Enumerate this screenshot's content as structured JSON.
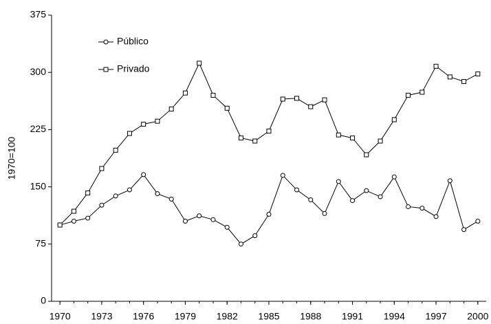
{
  "chart_data": {
    "type": "line",
    "y_label": "1970=100",
    "x": [
      1970,
      1971,
      1972,
      1973,
      1974,
      1975,
      1976,
      1977,
      1978,
      1979,
      1980,
      1981,
      1982,
      1983,
      1984,
      1985,
      1986,
      1987,
      1988,
      1989,
      1990,
      1991,
      1992,
      1993,
      1994,
      1995,
      1996,
      1997,
      1998,
      1999,
      2000
    ],
    "series": [
      {
        "name": "Público",
        "color": "#000000",
        "marker": "circle",
        "values": [
          100,
          105,
          109,
          126,
          138,
          146,
          166,
          141,
          134,
          105,
          112,
          107,
          97,
          75,
          86,
          114,
          165,
          146,
          133,
          115,
          157,
          132,
          145,
          137,
          163,
          124,
          122,
          111,
          158,
          94,
          105
        ]
      },
      {
        "name": "Privado",
        "color": "#000000",
        "marker": "square",
        "values": [
          100,
          118,
          142,
          174,
          198,
          220,
          232,
          236,
          252,
          273,
          312,
          270,
          253,
          214,
          210,
          223,
          265,
          266,
          255,
          264,
          218,
          214,
          192,
          210,
          238,
          270,
          274,
          308,
          294,
          288,
          298
        ]
      }
    ],
    "xlim": [
      1969.4,
      2000.6
    ],
    "xticks": [
      1970,
      1973,
      1976,
      1979,
      1982,
      1985,
      1988,
      1991,
      1994,
      1997,
      2000
    ],
    "ylim": [
      0,
      375
    ],
    "yticks": [
      0,
      75,
      150,
      225,
      300,
      375
    ],
    "grid": false,
    "legend": "upper left"
  }
}
